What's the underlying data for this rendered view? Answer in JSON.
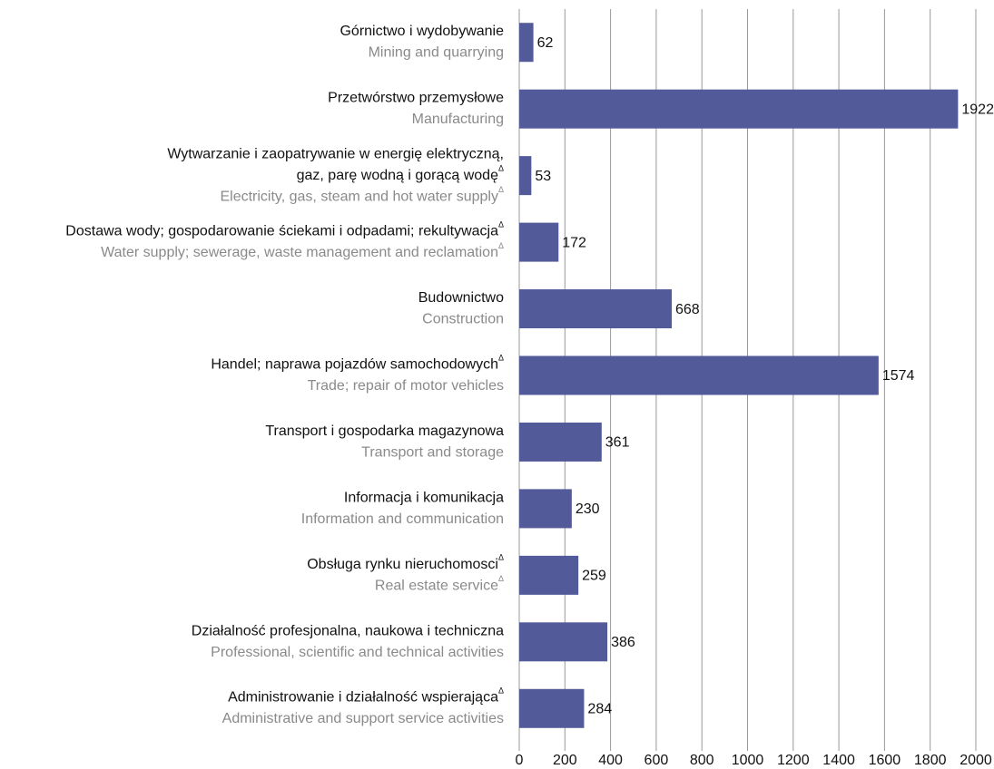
{
  "chart_data": {
    "type": "barh",
    "categories": [
      [
        "Górnictwo i wydobywanie"
      ],
      [
        "Przetwórstwo przemysłowe"
      ],
      [
        "Wytwarzanie i zaopatrywanie w energię elektryczną,",
        "gaz, parę wodną i gorącą wodęΔ"
      ],
      [
        "Dostawa wody; gospodarowanie ściekami i odpadami; rekultywacjaΔ"
      ],
      [
        "Budownictwo"
      ],
      [
        "Handel; naprawa pojazdów samochodowychΔ"
      ],
      [
        "Transport i gospodarka magazynowa"
      ],
      [
        "Informacja i komunikacja"
      ],
      [
        "Obsługa rynku nieruchomosciΔ"
      ],
      [
        "Działalność profesjonalna, naukowa i techniczna"
      ],
      [
        "Administrowanie i działalność wspierającaΔ"
      ]
    ],
    "categories_en": [
      "Mining and quarrying",
      "Manufacturing",
      "Electricity, gas, steam and hot water supplyΔ",
      "Water supply; sewerage, waste management and reclamationΔ",
      "Construction",
      "Trade; repair of motor vehicles",
      "Transport and storage",
      "Information and communication",
      "Real estate serviceΔ",
      "Professional, scientific and technical activities",
      "Administrative and support service activities"
    ],
    "values": [
      62,
      1922,
      53,
      172,
      668,
      1574,
      361,
      230,
      259,
      386,
      284
    ],
    "color": "#525a9a",
    "xlim": [
      0,
      2000
    ],
    "xticks": [
      0,
      200,
      400,
      600,
      800,
      1000,
      1200,
      1400,
      1600,
      1800,
      2000
    ],
    "grid": true
  }
}
